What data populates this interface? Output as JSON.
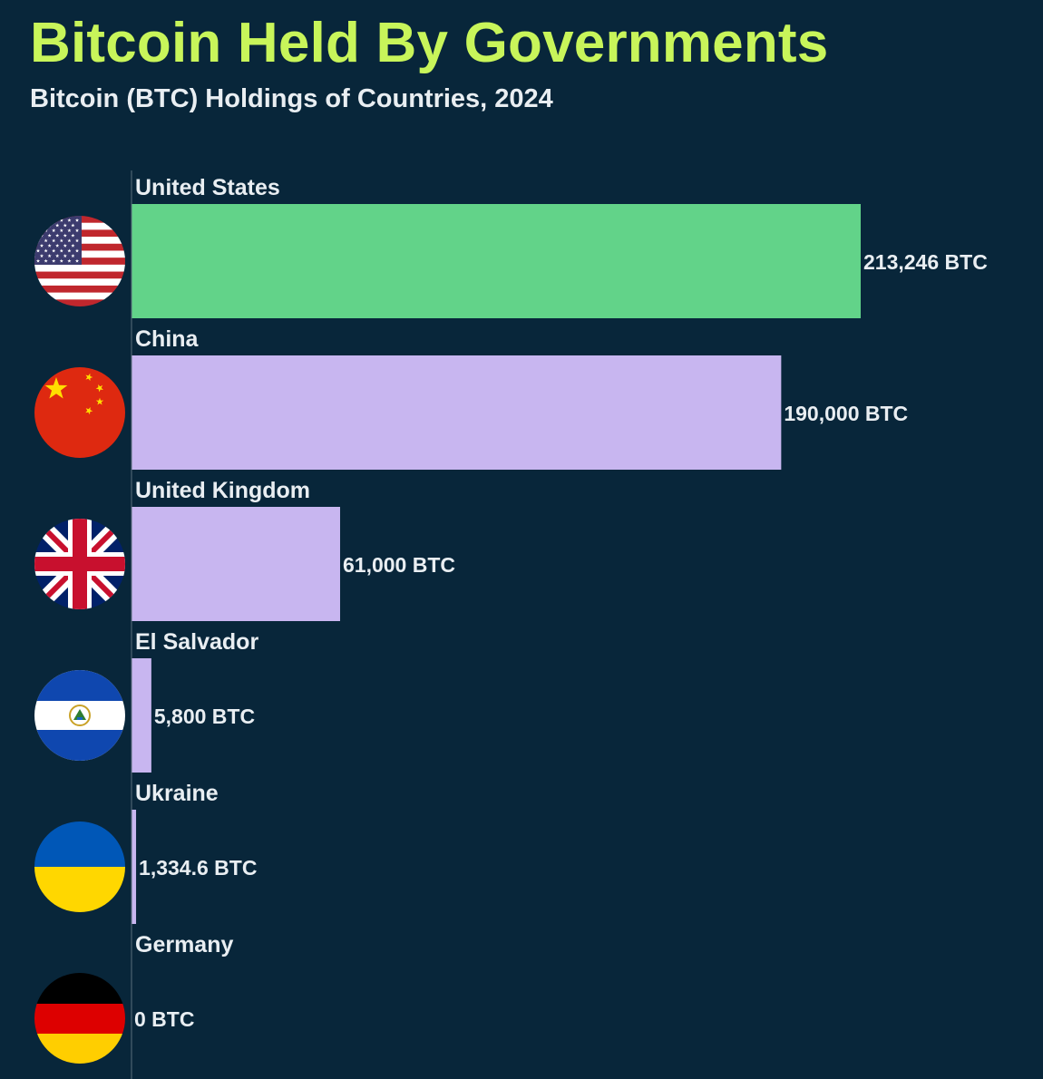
{
  "header": {
    "title": "Bitcoin Held By Governments",
    "subtitle": "Bitcoin (BTC) Holdings of Countries, 2024"
  },
  "colors": {
    "background": "#08263a",
    "title": "#c8f55a",
    "text": "#e9eef2",
    "highlight_bar": "#62d389",
    "bar": "#c8b6f0",
    "axis": "#5a6e7c"
  },
  "chart_data": {
    "type": "bar",
    "orientation": "horizontal",
    "title": "Bitcoin Held By Governments",
    "subtitle": "Bitcoin (BTC) Holdings of Countries, 2024",
    "categories": [
      "United States",
      "China",
      "United Kingdom",
      "El Salvador",
      "Ukraine",
      "Germany"
    ],
    "values": [
      213246,
      190000,
      61000,
      5800,
      1334.6,
      0
    ],
    "value_labels": [
      "213,246 BTC",
      "190,000 BTC",
      "61,000 BTC",
      "5,800 BTC",
      "1,334.6 BTC",
      "0 BTC"
    ],
    "flag_icons": [
      "us-flag-icon",
      "china-flag-icon",
      "uk-flag-icon",
      "el-salvador-flag-icon",
      "ukraine-flag-icon",
      "germany-flag-icon"
    ],
    "highlight_index": 0,
    "xlim": [
      0,
      213246
    ],
    "grid": false,
    "legend": "none"
  }
}
